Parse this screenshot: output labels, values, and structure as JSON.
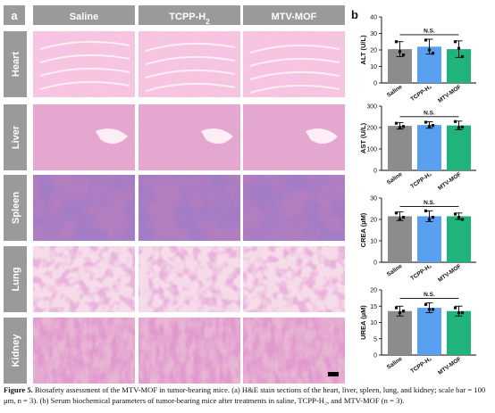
{
  "panel_a": {
    "label": "a",
    "columns": [
      {
        "text": "Saline"
      },
      {
        "text": "TCPP-H",
        "sub": "2"
      },
      {
        "text": "MTV-MOF"
      }
    ],
    "rows": [
      {
        "organ": "Heart",
        "tissue": "heart"
      },
      {
        "organ": "Liver",
        "tissue": "liver"
      },
      {
        "organ": "Spleen",
        "tissue": "spleen"
      },
      {
        "organ": "Lung",
        "tissue": "lung"
      },
      {
        "organ": "Kidney",
        "tissue": "kidney"
      }
    ]
  },
  "panel_b": {
    "label": "b"
  },
  "chart_data": [
    {
      "type": "bar",
      "ylabel": "ALT (U/L)",
      "categories": [
        "Saline",
        "TCPP-H₂",
        "MTV-MOF"
      ],
      "values": [
        20.5,
        22,
        20.5
      ],
      "errors": [
        4.5,
        4.5,
        5
      ],
      "points": [
        [
          25,
          19,
          17
        ],
        [
          26,
          20,
          18
        ],
        [
          25,
          21,
          16
        ]
      ],
      "ylim": [
        0,
        40
      ],
      "yticks": [
        "0",
        "10",
        "20",
        "30",
        "40"
      ],
      "annotation": "N.S.",
      "colors": [
        "#8c8c8c",
        "#5aa0f0",
        "#20b47c"
      ]
    },
    {
      "type": "bar",
      "ylabel": "AST (U/L)",
      "categories": [
        "Saline",
        "TCPP-H₂",
        "MTV-MOF"
      ],
      "values": [
        208,
        212,
        210
      ],
      "errors": [
        15,
        15,
        20
      ],
      "points": [
        [
          220,
          200,
          205
        ],
        [
          225,
          205,
          210
        ],
        [
          228,
          200,
          202
        ]
      ],
      "ylim": [
        0,
        300
      ],
      "yticks": [
        "0",
        "100",
        "200",
        "300"
      ],
      "annotation": "N.S.",
      "colors": [
        "#8c8c8c",
        "#5aa0f0",
        "#20b47c"
      ]
    },
    {
      "type": "bar",
      "ylabel": "CREA (µM)",
      "categories": [
        "Saline",
        "TCPP-H₂",
        "MTV-MOF"
      ],
      "values": [
        21.5,
        21.5,
        21.5
      ],
      "errors": [
        2,
        2.5,
        1.5
      ],
      "points": [
        [
          23,
          20,
          21
        ],
        [
          24,
          20,
          21
        ],
        [
          22.5,
          21,
          20
        ]
      ],
      "ylim": [
        0,
        30
      ],
      "yticks": [
        "0",
        "10",
        "20",
        "30"
      ],
      "annotation": "N.S.",
      "colors": [
        "#8c8c8c",
        "#5aa0f0",
        "#20b47c"
      ]
    },
    {
      "type": "bar",
      "ylabel": "UREA (µM)",
      "categories": [
        "Saline",
        "TCPP-H₂",
        "MTV-MOF"
      ],
      "values": [
        13.5,
        14.5,
        13.5
      ],
      "errors": [
        1.5,
        1.5,
        1.5
      ],
      "points": [
        [
          14.5,
          13,
          13.5
        ],
        [
          15.5,
          14,
          14
        ],
        [
          14.5,
          13,
          13
        ]
      ],
      "ylim": [
        0,
        20
      ],
      "yticks": [
        "0",
        "5",
        "10",
        "15",
        "20"
      ],
      "annotation": "N.S.",
      "colors": [
        "#8c8c8c",
        "#5aa0f0",
        "#20b47c"
      ]
    }
  ],
  "caption": {
    "lead": "Figure 5.",
    "text": " Biosafety assessment of the MTV-MOF in tumor-bearing mice. (a) H&E stain sections of the heart, liver, spleen, lung, and kidney; scale bar = 100 μm, n = 3). (b) Serum biochemical parameters of tumor-bearing mice after treatments in saline, TCPP-H₂, and MTV-MOF (n = 3)."
  }
}
